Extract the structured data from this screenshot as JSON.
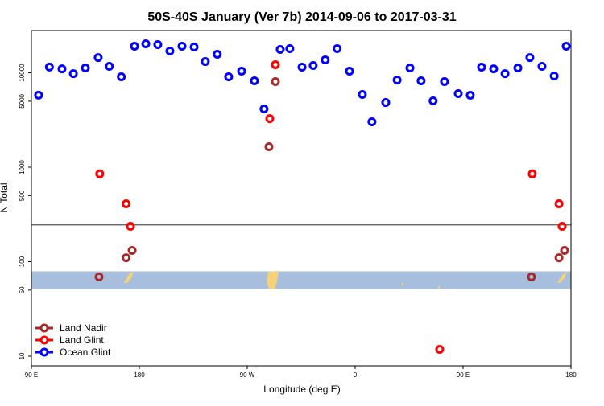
{
  "chart_data": {
    "type": "scatter",
    "title": "50S-40S January (Ver 7b)   2014-09-06 to 2017-03-31",
    "x_label": "Longitude (deg E)",
    "y_label": "N Total",
    "log_y": true,
    "xlim": [
      90,
      540
    ],
    "ylim": [
      7.9,
      28000
    ],
    "xticks": [
      {
        "value": 90,
        "label": "90 E"
      },
      180,
      {
        "value": 270,
        "label": "90 W"
      },
      {
        "value": 360,
        "label": "0"
      },
      {
        "value": 450,
        "label": "90 E"
      },
      {
        "value": 540,
        "label": "180"
      }
    ],
    "yticks": [
      10,
      50,
      100,
      500,
      1000,
      5000,
      10000
    ],
    "reference_line": 245,
    "band": [
      51,
      79
    ],
    "legend_position": "bottom-left",
    "series": [
      {
        "name": "Land Nadir",
        "color": "#a52a2a",
        "x": [
          146.4,
          169,
          174,
          288.1,
          293.5,
          507,
          530,
          534.6
        ],
        "values": [
          69,
          110,
          131.5,
          1650,
          8060,
          69,
          110,
          131.5
        ]
      },
      {
        "name": "Land Glint",
        "color": "#ff0000",
        "x": [
          147,
          169,
          172.6,
          288.8,
          293.5,
          430.5,
          507.7,
          530,
          532.6
        ],
        "values": [
          850,
          410,
          237,
          3270,
          12170,
          11.8,
          850,
          410,
          237
        ]
      },
      {
        "name": "Ocean Glint",
        "color": "#0000ff",
        "x": [
          96,
          105,
          115.5,
          125,
          135,
          145.7,
          155,
          165,
          176,
          185.4,
          195.4,
          205.5,
          215.6,
          225.7,
          235,
          245,
          254.5,
          265.3,
          276,
          284,
          297.5,
          305.5,
          315.7,
          325,
          335,
          345,
          355.3,
          366,
          374,
          385.5,
          395,
          405.7,
          415,
          425,
          434.5,
          446,
          456,
          465.4,
          475.5,
          485,
          495.7,
          505.7,
          515.8,
          526,
          536
        ],
        "values": [
          5800,
          11500,
          11000,
          9800,
          11250,
          14500,
          11700,
          9070,
          19100,
          20250,
          19860,
          16980,
          19100,
          18720,
          13150,
          15700,
          9070,
          10400,
          8220,
          4140,
          17650,
          18000,
          11470,
          11930,
          13680,
          18000,
          10400,
          5890,
          3030,
          4840,
          8380,
          11250,
          8220,
          5040,
          8060,
          6010,
          5780,
          11470,
          11000,
          9800,
          11250,
          14500,
          11700,
          9250,
          19100
        ]
      }
    ]
  }
}
